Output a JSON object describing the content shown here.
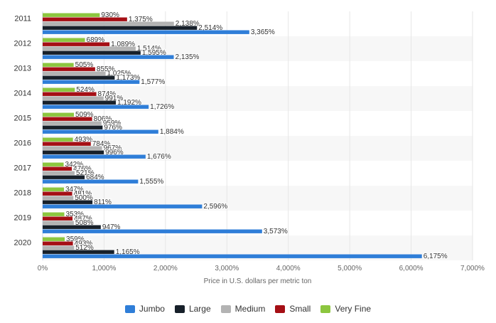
{
  "chart_data": {
    "type": "bar",
    "orientation": "horizontal",
    "title": "",
    "xlabel": "Price in U.S. dollars per metric ton",
    "ylabel": "",
    "xlim": [
      0,
      7000
    ],
    "x_ticks": [
      "0%",
      "1,000%",
      "2,000%",
      "3,000%",
      "4,000%",
      "5,000%",
      "6,000%",
      "7,000%"
    ],
    "x_tick_values": [
      0,
      1000,
      2000,
      3000,
      4000,
      5000,
      6000,
      7000
    ],
    "categories": [
      "2011",
      "2012",
      "2013",
      "2014",
      "2015",
      "2016",
      "2017",
      "2018",
      "2019",
      "2020"
    ],
    "series": [
      {
        "name": "Very Fine",
        "color": "#8cc63f",
        "values": [
          930,
          689,
          505,
          524,
          509,
          493,
          342,
          347,
          353,
          359
        ],
        "labels": [
          "930%",
          "689%",
          "505%",
          "524%",
          "509%",
          "493%",
          "342%",
          "347%",
          "353%",
          "359%"
        ]
      },
      {
        "name": "Small",
        "color": "#a50f15",
        "values": [
          1375,
          1089,
          855,
          874,
          806,
          784,
          476,
          481,
          487,
          493
        ],
        "labels": [
          "1,375%",
          "1,089%",
          "855%",
          "874%",
          "806%",
          "784%",
          "476%",
          "481%",
          "487%",
          "493%"
        ]
      },
      {
        "name": "Medium",
        "color": "#b3b3b3",
        "values": [
          2138,
          1514,
          1025,
          991,
          959,
          967,
          521,
          500,
          508,
          512
        ],
        "labels": [
          "2,138%",
          "1,514%",
          "1,025%",
          "991%",
          "959%",
          "967%",
          "521%",
          "500%",
          "508%",
          "512%"
        ]
      },
      {
        "name": "Large",
        "color": "#17202a",
        "values": [
          2514,
          1595,
          1173,
          1192,
          976,
          996,
          684,
          811,
          947,
          1165
        ],
        "labels": [
          "2,514%",
          "1,595%",
          "1,173%",
          "1,192%",
          "976%",
          "996%",
          "684%",
          "811%",
          "947%",
          "1,165%"
        ]
      },
      {
        "name": "Jumbo",
        "color": "#2f7ed8",
        "values": [
          3365,
          2135,
          1577,
          1726,
          1884,
          1676,
          1555,
          2596,
          3573,
          6175
        ],
        "labels": [
          "3,365%",
          "2,135%",
          "1,577%",
          "1,726%",
          "1,884%",
          "1,676%",
          "1,555%",
          "2,596%",
          "3,573%",
          "6,175%"
        ]
      }
    ],
    "legend": {
      "position": "bottom",
      "items": [
        {
          "name": "Jumbo",
          "color": "#2f7ed8"
        },
        {
          "name": "Large",
          "color": "#17202a"
        },
        {
          "name": "Medium",
          "color": "#b3b3b3"
        },
        {
          "name": "Small",
          "color": "#a50f15"
        },
        {
          "name": "Very Fine",
          "color": "#8cc63f"
        }
      ]
    },
    "grid": true
  }
}
